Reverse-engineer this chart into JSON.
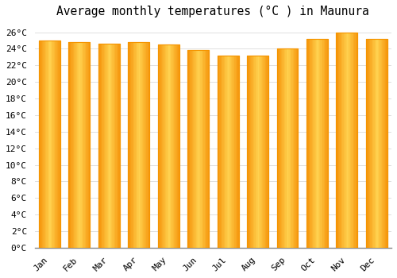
{
  "title": "Average monthly temperatures (°C ) in Maunura",
  "months": [
    "Jan",
    "Feb",
    "Mar",
    "Apr",
    "May",
    "Jun",
    "Jul",
    "Aug",
    "Sep",
    "Oct",
    "Nov",
    "Dec"
  ],
  "values": [
    25.0,
    24.8,
    24.6,
    24.8,
    24.5,
    23.8,
    23.2,
    23.2,
    24.0,
    25.2,
    26.0,
    25.2
  ],
  "bar_color_center": "#FFD050",
  "bar_color_edge": "#F59500",
  "background_color": "#FFFFFF",
  "grid_color": "#E0E0E0",
  "ylim": [
    0,
    27
  ],
  "ytick_step": 2,
  "title_fontsize": 10.5,
  "tick_fontsize": 8,
  "font_family": "monospace"
}
